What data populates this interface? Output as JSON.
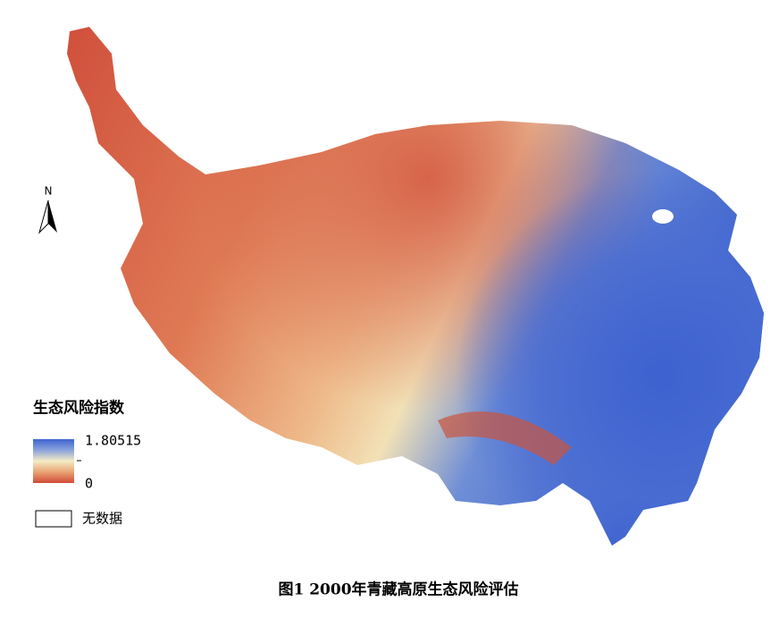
{
  "north_arrow": {
    "label": "N"
  },
  "legend": {
    "title": "生态风险指数",
    "max": 1.80515,
    "min": 0,
    "no_data": "无数据"
  },
  "caption": "图1 2000年青藏高原生态风险评估"
}
